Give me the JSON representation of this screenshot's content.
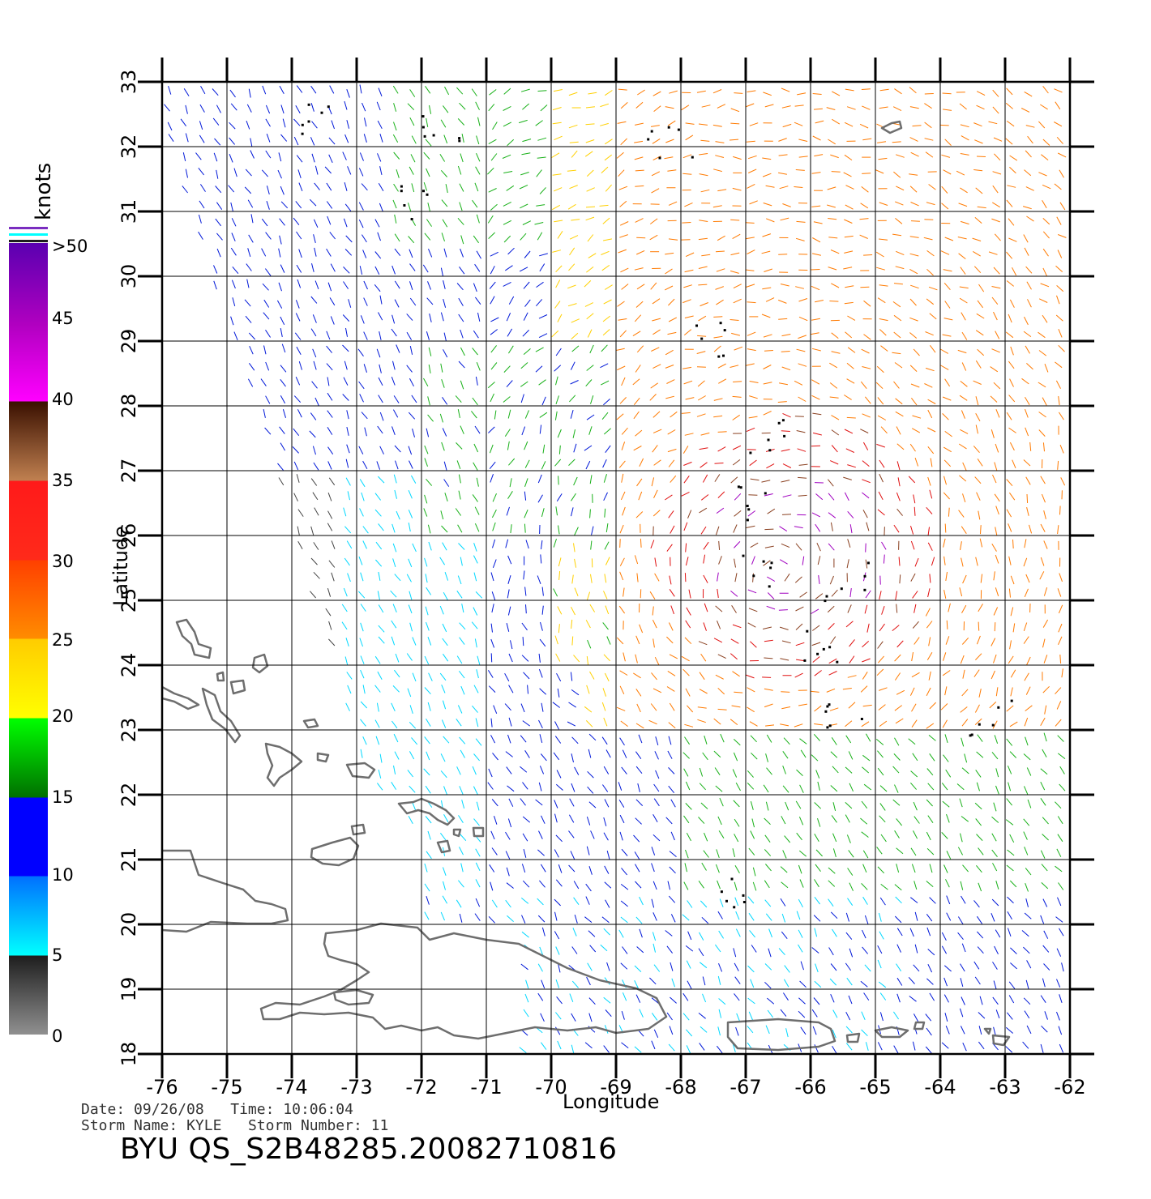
{
  "axes": {
    "x_label": "Longitude",
    "y_label": "Latitude",
    "x_ticks": [
      "-76",
      "-75",
      "-74",
      "-73",
      "-72",
      "-71",
      "-70",
      "-69",
      "-68",
      "-67",
      "-66",
      "-65",
      "-64",
      "-63",
      "-62"
    ],
    "y_ticks": [
      "18",
      "19",
      "20",
      "21",
      "22",
      "23",
      "24",
      "25",
      "26",
      "27",
      "28",
      "29",
      "30",
      "31",
      "32",
      "33"
    ]
  },
  "legend": {
    "unit": "knots",
    "labels": [
      "0",
      "5",
      "10",
      "15",
      "20",
      "25",
      "30",
      "35",
      "40",
      "45",
      ">50"
    ],
    "colors": [
      "#8a8a8a",
      "#2a2a2a",
      "#00ffff",
      "#0070ff",
      "#0000ff",
      "#007a00",
      "#00ff00",
      "#ffff00",
      "#ffcc00",
      "#ff8c00",
      "#ff3000",
      "#ff1a1a",
      "#c08050",
      "#3a1000",
      "#ff00ff",
      "#a000c0",
      "#5000a0"
    ]
  },
  "footer": {
    "date_label": "Date:",
    "date": "09/26/08",
    "time_label": "Time:",
    "time": "10:06:04",
    "storm_name_label": "Storm Name:",
    "storm_name": "KYLE",
    "storm_number_label": "Storm Number:",
    "storm_number": "11",
    "title": "BYU QS_S2B48285.20082710816"
  },
  "chart_data": {
    "type": "wind-vector-map",
    "xlabel": "Longitude",
    "ylabel": "Latitude",
    "xlim": [
      -76,
      -62
    ],
    "ylim": [
      18,
      33
    ],
    "colorbar": {
      "unit": "knots",
      "bins": [
        0,
        5,
        10,
        15,
        20,
        25,
        30,
        35,
        40,
        45,
        50
      ],
      "top_label": ">50"
    },
    "wind_regions": [
      {
        "lon": [
          -74.5,
          -72
        ],
        "lat": [
          21.5,
          26
        ],
        "speed_knots": "0-5"
      },
      {
        "lon": [
          -74,
          -71
        ],
        "lat": [
          20,
          27
        ],
        "speed_knots": "5-10"
      },
      {
        "lon": [
          -73.5,
          -70
        ],
        "lat": [
          26,
          33
        ],
        "speed_knots": "10-15"
      },
      {
        "lon": [
          -72.5,
          -69
        ],
        "lat": [
          28,
          33
        ],
        "speed_knots": "15-20"
      },
      {
        "lon": [
          -69,
          -62
        ],
        "lat": [
          27,
          33
        ],
        "speed_knots": "20-30"
      },
      {
        "lon": [
          -67.5,
          -65
        ],
        "lat": [
          24,
          27.5
        ],
        "speed_knots": "35-45"
      },
      {
        "lon": [
          -71,
          -62
        ],
        "lat": [
          18,
          23
        ],
        "speed_knots": "10-20"
      }
    ],
    "rain_flag_clusters": [
      {
        "lon": -67.5,
        "lat": 29
      },
      {
        "lon": -66.7,
        "lat": 27.5
      },
      {
        "lon": -66.8,
        "lat": 26.5
      },
      {
        "lon": -67.0,
        "lat": 25.5
      },
      {
        "lon": -65.5,
        "lat": 25.3
      },
      {
        "lon": -65.8,
        "lat": 24.3
      },
      {
        "lon": -65.5,
        "lat": 23.3
      },
      {
        "lon": -63.2,
        "lat": 23.2
      },
      {
        "lon": -72.3,
        "lat": 31.2
      },
      {
        "lon": -73.6,
        "lat": 32.4
      },
      {
        "lon": -71.8,
        "lat": 32.3
      },
      {
        "lon": -68.2,
        "lat": 32.1
      },
      {
        "lon": -67.1,
        "lat": 20.5
      }
    ]
  }
}
